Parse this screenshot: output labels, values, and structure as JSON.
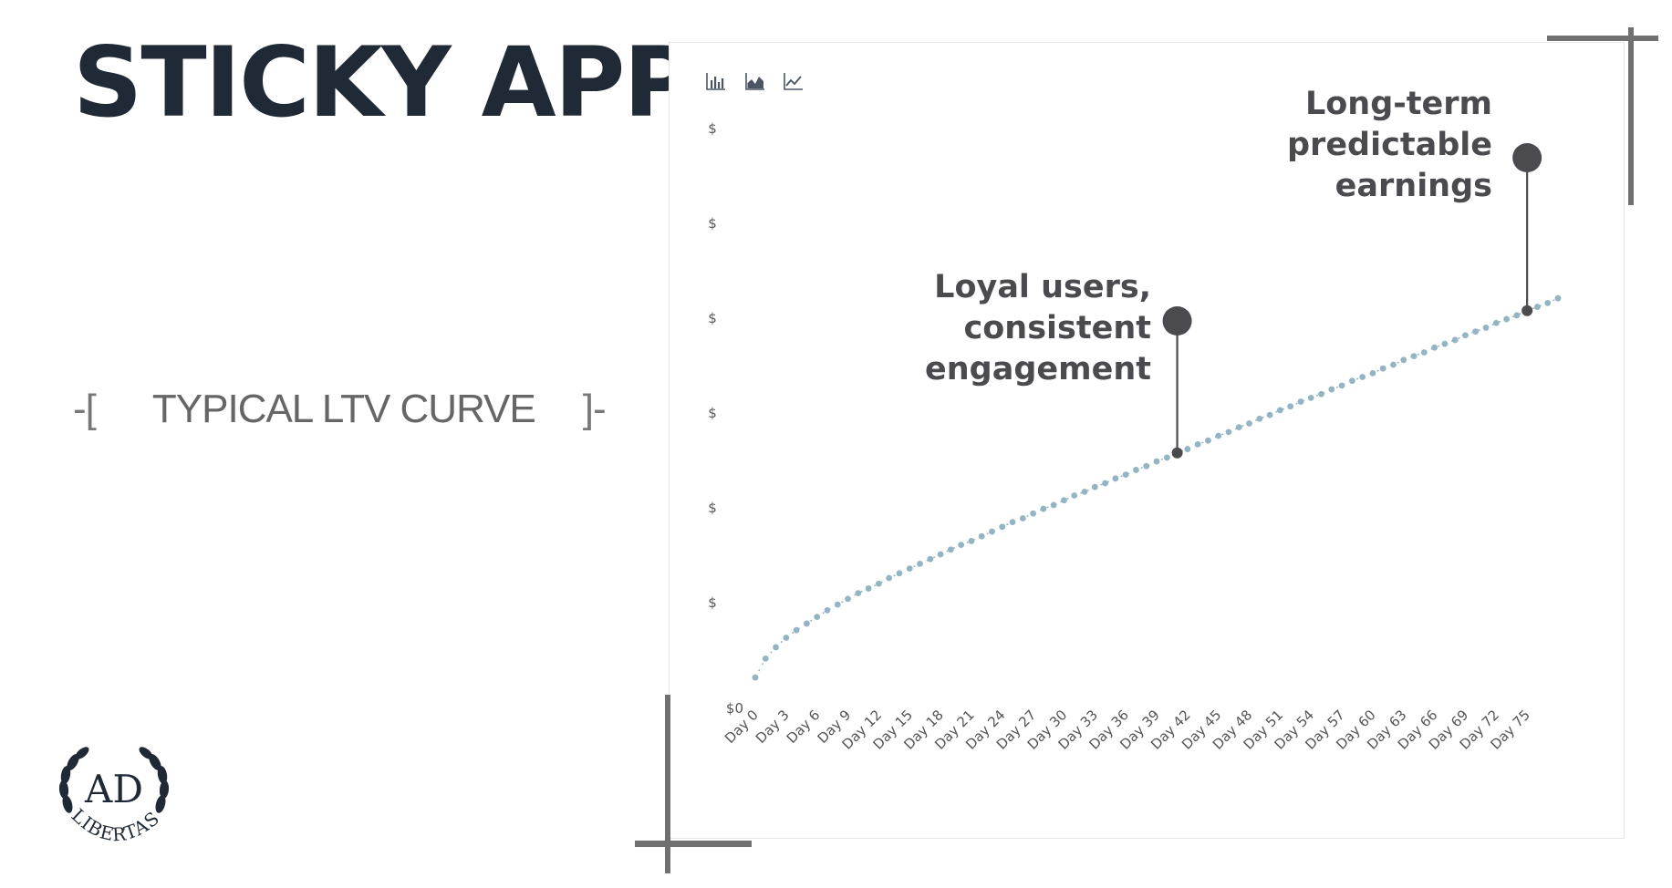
{
  "slide": {
    "title": "STICKY APPS",
    "subtitle_open": "-[",
    "subtitle_text": "TYPICAL LTV CURVE",
    "subtitle_close": "]-"
  },
  "toolbar": {
    "icons": [
      "bar-chart-icon",
      "area-chart-icon",
      "line-chart-icon"
    ]
  },
  "logo": {
    "text_top": "AD",
    "text_bottom": "LIBERTAS"
  },
  "colors": {
    "series": "#93b4c2",
    "annotation": "#4a4a4f",
    "corner": "#707070",
    "title": "#1f2a36"
  },
  "chart_data": {
    "type": "line",
    "title": "",
    "xlabel": "",
    "ylabel": "",
    "y_tick_labels": [
      "$0",
      "$",
      "$",
      "$",
      "$",
      "$",
      "$"
    ],
    "x_tick_labels": [
      "Day 0",
      "Day 3",
      "Day 6",
      "Day 9",
      "Day 12",
      "Day 15",
      "Day 18",
      "Day 21",
      "Day 24",
      "Day 27",
      "Day 30",
      "Day 33",
      "Day 36",
      "Day 39",
      "Day 42",
      "Day 45",
      "Day 48",
      "Day 51",
      "Day 54",
      "Day 57",
      "Day 60",
      "Day 63",
      "Day 66",
      "Day 69",
      "Day 72",
      "Day 75"
    ],
    "x_tick_days": [
      0,
      3,
      6,
      9,
      12,
      15,
      18,
      21,
      24,
      27,
      30,
      33,
      36,
      39,
      42,
      45,
      48,
      51,
      54,
      57,
      60,
      63,
      66,
      69,
      72,
      75
    ],
    "ylim": [
      0,
      6
    ],
    "x_range_days": [
      0,
      78
    ],
    "series": [
      {
        "values": [
          0.2,
          0.4,
          0.52,
          0.62,
          0.7,
          0.77,
          0.84,
          0.91,
          0.97,
          1.03,
          1.09,
          1.14,
          1.19,
          1.25,
          1.3,
          1.35,
          1.4,
          1.45,
          1.5,
          1.55,
          1.6,
          1.64,
          1.69,
          1.74,
          1.79,
          1.84,
          1.88,
          1.93,
          1.98,
          2.02,
          2.07,
          2.12,
          2.16,
          2.21,
          2.25,
          2.3,
          2.34,
          2.39,
          2.43,
          2.48,
          2.52,
          2.57,
          2.61,
          2.66,
          2.7,
          2.75,
          2.79,
          2.84,
          2.88,
          2.93,
          2.97,
          3.02,
          3.06,
          3.11,
          3.15,
          3.19,
          3.24,
          3.28,
          3.33,
          3.37,
          3.41,
          3.46,
          3.5,
          3.55,
          3.59,
          3.63,
          3.68,
          3.72,
          3.76,
          3.81,
          3.85,
          3.89,
          3.94,
          3.98,
          4.02,
          4.07,
          4.11,
          4.15,
          4.2
        ]
      }
    ],
    "grid": false,
    "annotations": [
      {
        "lines": [
          "Loyal users,",
          "consistent",
          "engagement"
        ],
        "day": 41
      },
      {
        "lines": [
          "Long-term",
          "predictable",
          "earnings"
        ],
        "day": 75
      }
    ]
  }
}
